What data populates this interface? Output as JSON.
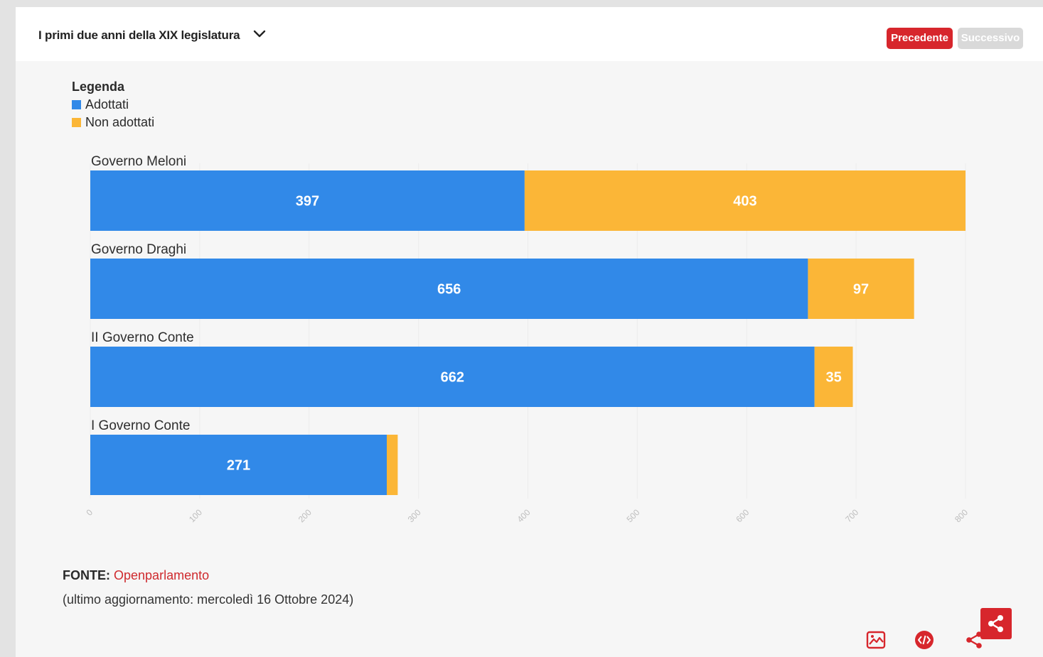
{
  "header": {
    "selector_label": "I primi due anni della XIX legislatura",
    "prev_label": "Precedente",
    "next_label": "Successivo"
  },
  "legend": {
    "title": "Legenda",
    "items": [
      {
        "label": "Adottati",
        "color": "#3189e8"
      },
      {
        "label": "Non adottati",
        "color": "#fbb637"
      }
    ]
  },
  "chart_data": {
    "type": "bar",
    "orientation": "horizontal",
    "stacked": true,
    "categories": [
      "Governo Meloni",
      "Governo Draghi",
      "II Governo Conte",
      "I Governo Conte"
    ],
    "series": [
      {
        "name": "Adottati",
        "color": "#3189e8",
        "values": [
          397,
          656,
          662,
          271
        ]
      },
      {
        "name": "Non adottati",
        "color": "#fbb637",
        "values": [
          403,
          97,
          35,
          10
        ]
      }
    ],
    "data_labels": [
      [
        "397",
        "403"
      ],
      [
        "656",
        "97"
      ],
      [
        "662",
        "35"
      ],
      [
        "271",
        ""
      ]
    ],
    "xlim": [
      0,
      800
    ],
    "xticks": [
      0,
      100,
      200,
      300,
      400,
      500,
      600,
      700,
      800
    ],
    "grid": true
  },
  "source": {
    "prefix": "FONTE:",
    "name": "Openparlamento",
    "updated": "(ultimo aggiornamento: mercoledì 16 Ottobre 2024)"
  },
  "toolbar": {
    "icons": [
      "image-icon",
      "embed-code-icon",
      "share-icon",
      "share-icon"
    ]
  }
}
